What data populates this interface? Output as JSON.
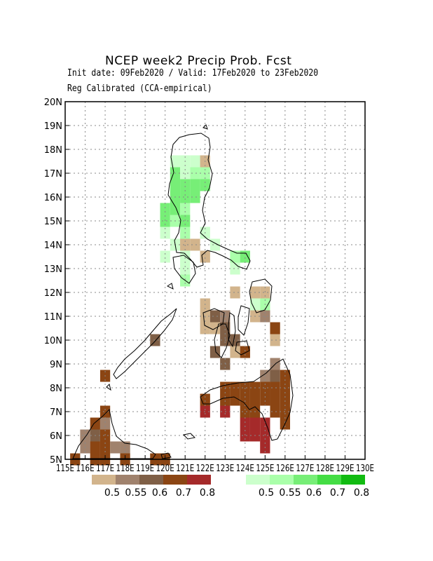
{
  "header": {
    "title": "NCEP week2 Precip Prob. Fcst",
    "subtitle_dates": "Init date: 09Feb2020 / Valid: 17Feb2020 to 23Feb2020",
    "subtitle_method": "Reg Calibrated (CCA-empirical)"
  },
  "map": {
    "lon_range": [
      115,
      130
    ],
    "lat_range": [
      5,
      20
    ],
    "lon_tick_labels": [
      "115E",
      "116E",
      "117E",
      "118E",
      "119E",
      "120E",
      "121E",
      "122E",
      "123E",
      "124E",
      "125E",
      "126E",
      "127E",
      "128E",
      "129E",
      "130E"
    ],
    "lat_tick_labels": [
      "5N",
      "6N",
      "7N",
      "8N",
      "9N",
      "10N",
      "11N",
      "12N",
      "13N",
      "14N",
      "15N",
      "16N",
      "17N",
      "18N",
      "19N",
      "20N"
    ],
    "grid": "dotted",
    "region": "Philippines"
  },
  "legend": {
    "dry": {
      "labels": [
        "0.5",
        "0.55",
        "0.6",
        "0.7",
        "0.8"
      ],
      "colors": [
        "#d2b48c",
        "#a0826d",
        "#7f5f46",
        "#8b4513",
        "#a52a2a"
      ]
    },
    "wet": {
      "labels": [
        "0.5",
        "0.55",
        "0.6",
        "0.7",
        "0.8"
      ],
      "colors": [
        "#ccffcc",
        "#aaffaa",
        "#77ee77",
        "#44dd44",
        "#11bb11"
      ]
    }
  },
  "chart_data": {
    "type": "heatmap",
    "title": "NCEP week2 Precip Prob. Fcst",
    "cell_size_deg": 0.5,
    "xlim": [
      115,
      130
    ],
    "ylim": [
      5,
      20
    ],
    "grid": true,
    "categories_dry": [
      "0.5",
      "0.55",
      "0.6",
      "0.7",
      "0.8"
    ],
    "categories_wet": [
      "0.5",
      "0.55",
      "0.6",
      "0.7",
      "0.8"
    ],
    "cells": [
      {
        "lon": 120.5,
        "lat": 17.5,
        "cat": "wet1"
      },
      {
        "lon": 121.0,
        "lat": 17.5,
        "cat": "wet1"
      },
      {
        "lon": 121.5,
        "lat": 17.5,
        "cat": "wet1"
      },
      {
        "lon": 122.0,
        "lat": 17.5,
        "cat": "dry1"
      },
      {
        "lon": 120.5,
        "lat": 17.0,
        "cat": "wet3"
      },
      {
        "lon": 121.0,
        "lat": 17.0,
        "cat": "wet1"
      },
      {
        "lon": 121.5,
        "lat": 17.0,
        "cat": "wet2"
      },
      {
        "lon": 122.0,
        "lat": 17.0,
        "cat": "wet2"
      },
      {
        "lon": 120.5,
        "lat": 16.5,
        "cat": "wet3"
      },
      {
        "lon": 121.0,
        "lat": 16.5,
        "cat": "wet3"
      },
      {
        "lon": 121.5,
        "lat": 16.5,
        "cat": "wet3"
      },
      {
        "lon": 122.0,
        "lat": 16.5,
        "cat": "wet3"
      },
      {
        "lon": 120.5,
        "lat": 16.0,
        "cat": "wet3"
      },
      {
        "lon": 121.0,
        "lat": 16.0,
        "cat": "wet3"
      },
      {
        "lon": 121.5,
        "lat": 16.0,
        "cat": "wet3"
      },
      {
        "lon": 120.0,
        "lat": 15.5,
        "cat": "wet3"
      },
      {
        "lon": 120.5,
        "lat": 15.5,
        "cat": "wet3"
      },
      {
        "lon": 121.0,
        "lat": 15.5,
        "cat": "wet2"
      },
      {
        "lon": 120.0,
        "lat": 15.0,
        "cat": "wet3"
      },
      {
        "lon": 120.5,
        "lat": 15.0,
        "cat": "wet2"
      },
      {
        "lon": 121.0,
        "lat": 15.0,
        "cat": "wet3"
      },
      {
        "lon": 120.0,
        "lat": 14.5,
        "cat": "wet1"
      },
      {
        "lon": 121.0,
        "lat": 14.5,
        "cat": "wet2"
      },
      {
        "lon": 122.0,
        "lat": 14.5,
        "cat": "wet1"
      },
      {
        "lon": 120.5,
        "lat": 14.0,
        "cat": "wet1"
      },
      {
        "lon": 121.0,
        "lat": 14.0,
        "cat": "dry1"
      },
      {
        "lon": 121.5,
        "lat": 14.0,
        "cat": "dry1"
      },
      {
        "lon": 122.5,
        "lat": 14.0,
        "cat": "wet1"
      },
      {
        "lon": 120.0,
        "lat": 13.5,
        "cat": "wet1"
      },
      {
        "lon": 121.0,
        "lat": 13.5,
        "cat": "wet1"
      },
      {
        "lon": 122.0,
        "lat": 13.5,
        "cat": "dry1"
      },
      {
        "lon": 123.5,
        "lat": 13.5,
        "cat": "wet2"
      },
      {
        "lon": 124.0,
        "lat": 13.5,
        "cat": "wet3"
      },
      {
        "lon": 121.0,
        "lat": 13.0,
        "cat": "wet1"
      },
      {
        "lon": 123.5,
        "lat": 13.0,
        "cat": "wet1"
      },
      {
        "lon": 121.0,
        "lat": 12.5,
        "cat": "wet2"
      },
      {
        "lon": 123.5,
        "lat": 12.0,
        "cat": "dry1"
      },
      {
        "lon": 124.5,
        "lat": 12.0,
        "cat": "dry1"
      },
      {
        "lon": 125.0,
        "lat": 12.0,
        "cat": "dry1"
      },
      {
        "lon": 122.0,
        "lat": 11.5,
        "cat": "dry1"
      },
      {
        "lon": 124.5,
        "lat": 11.5,
        "cat": "wet1"
      },
      {
        "lon": 125.0,
        "lat": 11.5,
        "cat": "wet2"
      },
      {
        "lon": 122.0,
        "lat": 11.0,
        "cat": "dry1"
      },
      {
        "lon": 122.5,
        "lat": 11.0,
        "cat": "dry3"
      },
      {
        "lon": 123.0,
        "lat": 11.0,
        "cat": "dry2"
      },
      {
        "lon": 124.5,
        "lat": 11.0,
        "cat": "dry1"
      },
      {
        "lon": 125.0,
        "lat": 11.0,
        "cat": "dry2"
      },
      {
        "lon": 122.0,
        "lat": 10.5,
        "cat": "dry1"
      },
      {
        "lon": 122.5,
        "lat": 10.5,
        "cat": "dry1"
      },
      {
        "lon": 123.0,
        "lat": 10.5,
        "cat": "dry3"
      },
      {
        "lon": 125.5,
        "lat": 10.5,
        "cat": "dry4"
      },
      {
        "lon": 123.0,
        "lat": 10.0,
        "cat": "dry3"
      },
      {
        "lon": 123.5,
        "lat": 10.0,
        "cat": "dry3"
      },
      {
        "lon": 125.5,
        "lat": 10.0,
        "cat": "dry1"
      },
      {
        "lon": 119.5,
        "lat": 10.0,
        "cat": "dry3"
      },
      {
        "lon": 122.5,
        "lat": 9.5,
        "cat": "dry3"
      },
      {
        "lon": 123.5,
        "lat": 9.5,
        "cat": "dry1"
      },
      {
        "lon": 124.0,
        "lat": 9.5,
        "cat": "dry4"
      },
      {
        "lon": 123.0,
        "lat": 9.0,
        "cat": "dry3"
      },
      {
        "lon": 125.5,
        "lat": 9.0,
        "cat": "dry2"
      },
      {
        "lon": 117.0,
        "lat": 8.5,
        "cat": "dry4"
      },
      {
        "lon": 125.0,
        "lat": 8.5,
        "cat": "dry2"
      },
      {
        "lon": 125.5,
        "lat": 8.5,
        "cat": "dry3"
      },
      {
        "lon": 126.0,
        "lat": 8.5,
        "cat": "dry4"
      },
      {
        "lon": 123.0,
        "lat": 8.0,
        "cat": "dry4"
      },
      {
        "lon": 123.5,
        "lat": 8.0,
        "cat": "dry4"
      },
      {
        "lon": 124.0,
        "lat": 8.0,
        "cat": "dry4"
      },
      {
        "lon": 124.5,
        "lat": 8.0,
        "cat": "dry4"
      },
      {
        "lon": 125.0,
        "lat": 8.0,
        "cat": "dry4"
      },
      {
        "lon": 125.5,
        "lat": 8.0,
        "cat": "dry4"
      },
      {
        "lon": 126.0,
        "lat": 8.0,
        "cat": "dry4"
      },
      {
        "lon": 122.0,
        "lat": 7.5,
        "cat": "dry4"
      },
      {
        "lon": 123.0,
        "lat": 7.5,
        "cat": "dry4"
      },
      {
        "lon": 123.5,
        "lat": 7.5,
        "cat": "dry4"
      },
      {
        "lon": 124.0,
        "lat": 7.5,
        "cat": "dry4"
      },
      {
        "lon": 124.5,
        "lat": 7.5,
        "cat": "dry4"
      },
      {
        "lon": 125.0,
        "lat": 7.5,
        "cat": "dry4"
      },
      {
        "lon": 125.5,
        "lat": 7.5,
        "cat": "dry4"
      },
      {
        "lon": 126.0,
        "lat": 7.5,
        "cat": "dry4"
      },
      {
        "lon": 122.0,
        "lat": 7.0,
        "cat": "dry5"
      },
      {
        "lon": 123.0,
        "lat": 7.0,
        "cat": "dry5"
      },
      {
        "lon": 124.0,
        "lat": 7.0,
        "cat": "dry4"
      },
      {
        "lon": 124.5,
        "lat": 7.0,
        "cat": "dry4"
      },
      {
        "lon": 125.5,
        "lat": 7.0,
        "cat": "dry4"
      },
      {
        "lon": 126.0,
        "lat": 7.0,
        "cat": "dry4"
      },
      {
        "lon": 117.0,
        "lat": 7.0,
        "cat": "dry4"
      },
      {
        "lon": 124.0,
        "lat": 6.5,
        "cat": "dry5"
      },
      {
        "lon": 124.5,
        "lat": 6.5,
        "cat": "dry5"
      },
      {
        "lon": 125.0,
        "lat": 6.5,
        "cat": "dry5"
      },
      {
        "lon": 126.0,
        "lat": 6.5,
        "cat": "dry4"
      },
      {
        "lon": 116.5,
        "lat": 6.5,
        "cat": "dry4"
      },
      {
        "lon": 117.0,
        "lat": 6.5,
        "cat": "dry2"
      },
      {
        "lon": 124.0,
        "lat": 6.0,
        "cat": "dry5"
      },
      {
        "lon": 124.5,
        "lat": 6.0,
        "cat": "dry5"
      },
      {
        "lon": 125.0,
        "lat": 6.0,
        "cat": "dry5"
      },
      {
        "lon": 116.5,
        "lat": 6.0,
        "cat": "dry3"
      },
      {
        "lon": 117.0,
        "lat": 6.0,
        "cat": "dry4"
      },
      {
        "lon": 116.0,
        "lat": 6.0,
        "cat": "dry2"
      },
      {
        "lon": 125.0,
        "lat": 5.5,
        "cat": "dry5"
      },
      {
        "lon": 116.0,
        "lat": 5.5,
        "cat": "dry2"
      },
      {
        "lon": 116.5,
        "lat": 5.5,
        "cat": "dry4"
      },
      {
        "lon": 117.0,
        "lat": 5.5,
        "cat": "dry4"
      },
      {
        "lon": 117.5,
        "lat": 5.5,
        "cat": "dry2"
      },
      {
        "lon": 118.0,
        "lat": 5.5,
        "cat": "dry2"
      },
      {
        "lon": 115.5,
        "lat": 5.0,
        "cat": "dry4"
      },
      {
        "lon": 116.5,
        "lat": 5.0,
        "cat": "dry4"
      },
      {
        "lon": 117.0,
        "lat": 5.0,
        "cat": "dry4"
      },
      {
        "lon": 118.0,
        "lat": 5.0,
        "cat": "dry4"
      },
      {
        "lon": 119.5,
        "lat": 5.0,
        "cat": "dry4"
      },
      {
        "lon": 120.0,
        "lat": 5.0,
        "cat": "dry4"
      }
    ]
  }
}
